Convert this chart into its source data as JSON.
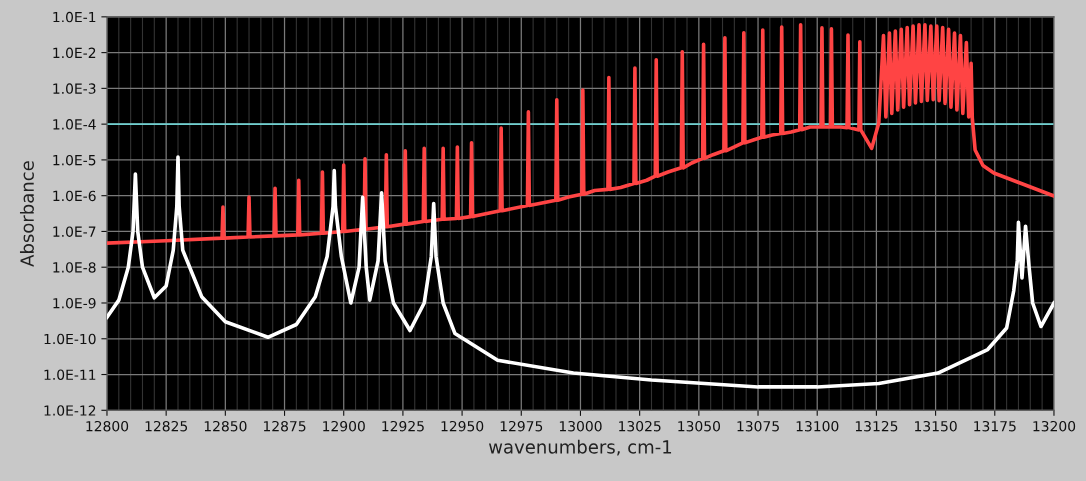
{
  "chart_data": {
    "type": "line",
    "xlabel": "wavenumbers, cm-1",
    "ylabel": "Absorbance",
    "log": "y",
    "grid": true,
    "line_style": "solid",
    "xlim": [
      12800,
      13200
    ],
    "xticks": [
      12800,
      12825,
      12850,
      12875,
      12900,
      12925,
      12950,
      12975,
      13000,
      13025,
      13050,
      13075,
      13100,
      13125,
      13150,
      13175,
      13200
    ],
    "ylim": [
      1e-12,
      0.1
    ],
    "yticks": [
      {
        "value": 1e-12,
        "label": "1.0E-12"
      },
      {
        "value": 1e-11,
        "label": "1.0E-11"
      },
      {
        "value": 1e-10,
        "label": "1.0E-10"
      },
      {
        "value": 1e-09,
        "label": "1.0E-9"
      },
      {
        "value": 1e-08,
        "label": "1.0E-8"
      },
      {
        "value": 1e-07,
        "label": "1.0E-7"
      },
      {
        "value": 1e-06,
        "label": "1.0E-6"
      },
      {
        "value": 1e-05,
        "label": "1.0E-5"
      },
      {
        "value": 0.0001,
        "label": "1.0E-4"
      },
      {
        "value": 0.001,
        "label": "1.0E-3"
      },
      {
        "value": 0.01,
        "label": "1.0E-2"
      },
      {
        "value": 0.1,
        "label": "1.0E-1"
      }
    ],
    "ref_lines": [
      {
        "axis": "y",
        "value": 0.0001,
        "color": "#6fd0d0"
      }
    ],
    "series": [
      {
        "color": "#ff4444",
        "x": [
          12800,
          12825,
          12848.6,
          12849,
          12849.4,
          12859.6,
          12860,
          12860.4,
          12870.6,
          12871,
          12871.4,
          12880.6,
          12881,
          12881.4,
          12890.6,
          12891,
          12891.4,
          12899.6,
          12900,
          12900.4,
          12908.6,
          12909,
          12909.4,
          12917.6,
          12918,
          12918.4,
          12925.6,
          12926,
          12926.4,
          12933.6,
          12934,
          12934.4,
          12941.6,
          12942,
          12942.4,
          12947.6,
          12948,
          12948.4,
          12953.6,
          12954,
          12954.4,
          12966.1,
          12966.5,
          12966.9,
          12977.6,
          12978,
          12978.4,
          12989.6,
          12990,
          12990.4,
          12995,
          13000.6,
          13001,
          13001.4,
          13006,
          13011.6,
          13012,
          13012.4,
          13017,
          13022.6,
          13023,
          13023.4,
          13028,
          13031.6,
          13032,
          13032.4,
          13037,
          13042.6,
          13043,
          13043.4,
          13047,
          13051.6,
          13052,
          13052.4,
          13056,
          13060.6,
          13061,
          13061.4,
          13065,
          13068.6,
          13069,
          13069.4,
          13073,
          13076.6,
          13077,
          13077.4,
          13081,
          13084.6,
          13085,
          13085.4,
          13089,
          13092.6,
          13093,
          13093.4,
          13097,
          13101.6,
          13102,
          13102.4,
          13105.6,
          13106,
          13106.4,
          13110,
          13112.6,
          13113,
          13113.4,
          13117.6,
          13118,
          13118.4,
          13123,
          13126,
          13128,
          13129,
          13130.5,
          13131.5,
          13133,
          13134,
          13135.5,
          13136.5,
          13138,
          13139,
          13140.5,
          13141.5,
          13143,
          13144,
          13145.5,
          13146.5,
          13148,
          13149,
          13150.5,
          13151.5,
          13153,
          13154,
          13155.5,
          13156.5,
          13158,
          13159,
          13160.5,
          13161.5,
          13163,
          13164,
          13165,
          13165.5,
          13166.7,
          13170,
          13174.6,
          13185.4,
          13200
        ],
        "values": [
          4.7e-08,
          5.5e-08,
          6.5e-08,
          4.8e-07,
          6.5e-08,
          7e-08,
          9.2e-07,
          7e-08,
          7.5e-08,
          1.6e-06,
          7.5e-08,
          8e-08,
          2.7e-06,
          8e-08,
          8.9e-08,
          4.6e-06,
          8.9e-08,
          1e-07,
          7.2e-06,
          1e-07,
          1.15e-07,
          1.07e-05,
          1.15e-07,
          1.35e-07,
          1.4e-05,
          1.35e-07,
          1.6e-07,
          1.8e-05,
          1.6e-07,
          1.9e-07,
          2.1e-05,
          1.9e-07,
          2.2e-07,
          2.1e-05,
          2.2e-07,
          2.3e-07,
          2.3e-05,
          2.3e-07,
          2.6e-07,
          3e-05,
          2.6e-07,
          3.8e-07,
          7.8e-05,
          3.8e-07,
          5.3e-07,
          0.00022,
          5.3e-07,
          7.5e-07,
          0.00048,
          7.5e-07,
          9.2e-07,
          1.1e-06,
          0.0009,
          1.1e-06,
          1.4e-06,
          1.5e-06,
          0.002,
          1.5e-06,
          1.7e-06,
          2.2e-06,
          0.0037,
          2.2e-06,
          2.7e-06,
          3.5e-06,
          0.0063,
          3.5e-06,
          4.6e-06,
          6e-06,
          0.0105,
          6e-06,
          8.2e-06,
          1.1e-05,
          0.017,
          1.1e-05,
          1.4e-05,
          1.8e-05,
          0.026,
          1.8e-05,
          2.3e-05,
          3e-05,
          0.036,
          3e-05,
          3.6e-05,
          4.3e-05,
          0.043,
          4.3e-05,
          5e-05,
          5.5e-05,
          0.052,
          5.5e-05,
          6e-05,
          7e-05,
          0.06,
          7e-05,
          8.3e-05,
          8.3e-05,
          0.049,
          8.3e-05,
          8.3e-05,
          0.046,
          8.3e-05,
          8.3e-05,
          8e-05,
          0.031,
          8e-05,
          6.9e-05,
          0.02,
          6.9e-05,
          2.1e-05,
          0.000107,
          0.03,
          0.00016,
          0.035,
          0.0002,
          0.04,
          0.00025,
          0.045,
          0.0003,
          0.05,
          0.00035,
          0.055,
          0.00039,
          0.06,
          0.00043,
          0.06,
          0.00046,
          0.055,
          0.00048,
          0.055,
          0.00045,
          0.05,
          0.00038,
          0.045,
          0.0003,
          0.035,
          0.00025,
          0.03,
          0.0002,
          0.019,
          0.00016,
          0.005,
          0.00015,
          1.9e-05,
          7e-06,
          4.3e-06,
          2.3e-06,
          9.8e-07
        ]
      },
      {
        "color": "#ffffff",
        "x": [
          12800,
          12805,
          12809,
          12811,
          12812,
          12813,
          12815,
          12820,
          12825,
          12828,
          12829.5,
          12830,
          12830.5,
          12832,
          12840,
          12850,
          12868,
          12880,
          12888,
          12893,
          12895.5,
          12896,
          12896.5,
          12899,
          12903,
          12906.5,
          12908,
          12909.5,
          12911,
          12914.5,
          12916,
          12917.5,
          12921,
          12928,
          12934,
          12937,
          12938,
          12939,
          12942,
          12947,
          12965,
          12997,
          13030,
          13075,
          13100,
          13126,
          13151,
          13172,
          13180,
          13183,
          13184.5,
          13185,
          13186.5,
          13188,
          13189.5,
          13191,
          13194.5,
          13200
        ],
        "values": [
          4e-10,
          1.2e-09,
          1e-08,
          1e-07,
          4e-06,
          1e-07,
          1e-08,
          1.4e-09,
          3e-09,
          3e-08,
          5e-07,
          1.2e-05,
          5e-07,
          3e-08,
          1.5e-09,
          3e-10,
          1.1e-10,
          2.5e-10,
          1.5e-09,
          2e-08,
          5e-07,
          5e-06,
          5e-07,
          2e-08,
          1e-09,
          1e-08,
          9e-07,
          1e-08,
          1.2e-09,
          1.5e-08,
          1.2e-06,
          1.5e-08,
          1e-09,
          1.7e-10,
          1e-09,
          2e-08,
          6e-07,
          2e-08,
          1e-09,
          1.4e-10,
          2.5e-11,
          1.1e-11,
          7e-12,
          4.5e-12,
          4.5e-12,
          5.6e-12,
          1.1e-11,
          5e-11,
          2e-10,
          2.2e-09,
          1.5e-08,
          1.8e-07,
          5e-09,
          1.4e-07,
          1e-08,
          1e-09,
          2.2e-10,
          1e-09
        ]
      }
    ]
  }
}
